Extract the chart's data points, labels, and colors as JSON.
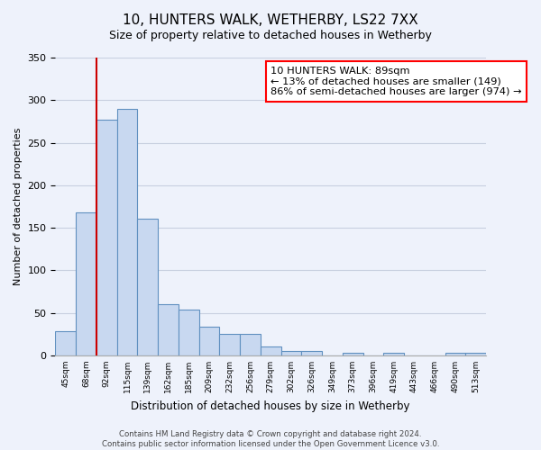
{
  "title": "10, HUNTERS WALK, WETHERBY, LS22 7XX",
  "subtitle": "Size of property relative to detached houses in Wetherby",
  "xlabel": "Distribution of detached houses by size in Wetherby",
  "ylabel": "Number of detached properties",
  "bin_labels": [
    "45sqm",
    "68sqm",
    "92sqm",
    "115sqm",
    "139sqm",
    "162sqm",
    "185sqm",
    "209sqm",
    "232sqm",
    "256sqm",
    "279sqm",
    "302sqm",
    "326sqm",
    "349sqm",
    "373sqm",
    "396sqm",
    "419sqm",
    "443sqm",
    "466sqm",
    "490sqm",
    "513sqm"
  ],
  "bar_heights": [
    29,
    168,
    277,
    290,
    161,
    60,
    54,
    34,
    25,
    25,
    10,
    5,
    5,
    0,
    3,
    0,
    3,
    0,
    0,
    3,
    3
  ],
  "bar_color": "#c8d8f0",
  "bar_edge_color": "#6090c0",
  "vline_x": 1.5,
  "vline_color": "#cc0000",
  "ylim": [
    0,
    350
  ],
  "yticks": [
    0,
    50,
    100,
    150,
    200,
    250,
    300,
    350
  ],
  "annotation_title": "10 HUNTERS WALK: 89sqm",
  "annotation_line1": "← 13% of detached houses are smaller (149)",
  "annotation_line2": "86% of semi-detached houses are larger (974) →",
  "footer1": "Contains HM Land Registry data © Crown copyright and database right 2024.",
  "footer2": "Contains public sector information licensed under the Open Government Licence v3.0.",
  "bg_color": "#eef2fb",
  "plot_bg_color": "#eef2fb",
  "grid_color": "#c8d0e0"
}
